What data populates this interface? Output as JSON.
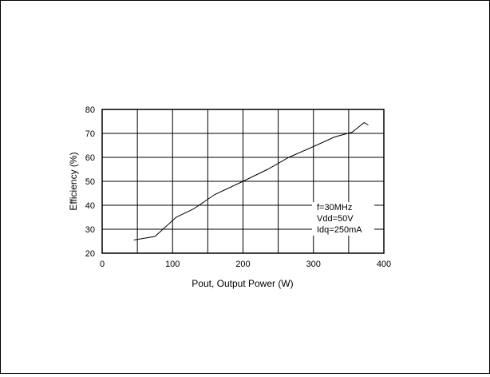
{
  "chart_data": {
    "type": "line",
    "xlabel": "Pout, Output Power (W)",
    "ylabel": "Efficiency (%)",
    "xlim": [
      0,
      400
    ],
    "ylim": [
      20,
      80
    ],
    "x_ticks": [
      "0",
      "100",
      "200",
      "300",
      "400"
    ],
    "y_ticks": [
      "20",
      "30",
      "40",
      "50",
      "60",
      "70",
      "80"
    ],
    "grid": true,
    "series": [
      {
        "x": [
          45,
          75,
          105,
          130,
          160,
          200,
          235,
          265,
          300,
          330,
          355,
          372,
          378
        ],
        "y": [
          25.5,
          27,
          35,
          38.5,
          44.5,
          50,
          55,
          60,
          64.5,
          68.5,
          70.5,
          74.5,
          73.5
        ],
        "color": "#000000"
      }
    ],
    "annotations": [
      "f=30MHz",
      "Vdd=50V",
      "Idq=250mA"
    ]
  }
}
